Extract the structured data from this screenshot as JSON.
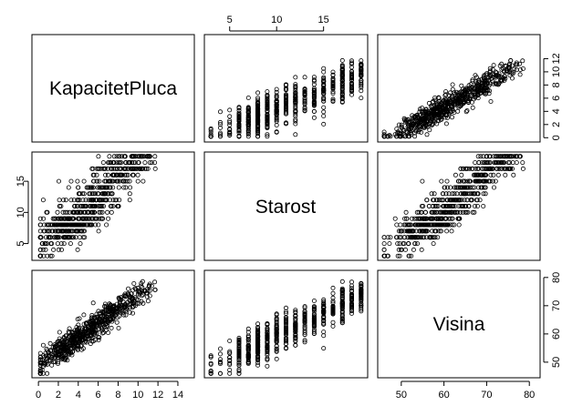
{
  "chart_data": {
    "type": "scatter",
    "variables": [
      "KapacitetPluca",
      "Starost",
      "Visina"
    ],
    "ranges": {
      "KapacitetPluca": [
        0,
        15
      ],
      "Starost": [
        3,
        19
      ],
      "Visina": [
        46,
        81
      ]
    },
    "ticks": {
      "KapacitetPluca": {
        "top": [
          "0",
          "2",
          "4",
          "6",
          "8",
          "10",
          "12"
        ],
        "bottom": [
          "0",
          "2",
          "4",
          "6",
          "8",
          "10",
          "12",
          "14"
        ]
      },
      "Starost": [
        "5",
        "10",
        "15"
      ],
      "Visina": [
        "50",
        "60",
        "70",
        "80"
      ]
    },
    "point_style": "open circle",
    "n_observations": 654,
    "layout": "3x3 scatterplot matrix, variable names on the diagonal",
    "trend": "positive relationships between all pairs; Starost is integer-valued (striped columns)"
  }
}
